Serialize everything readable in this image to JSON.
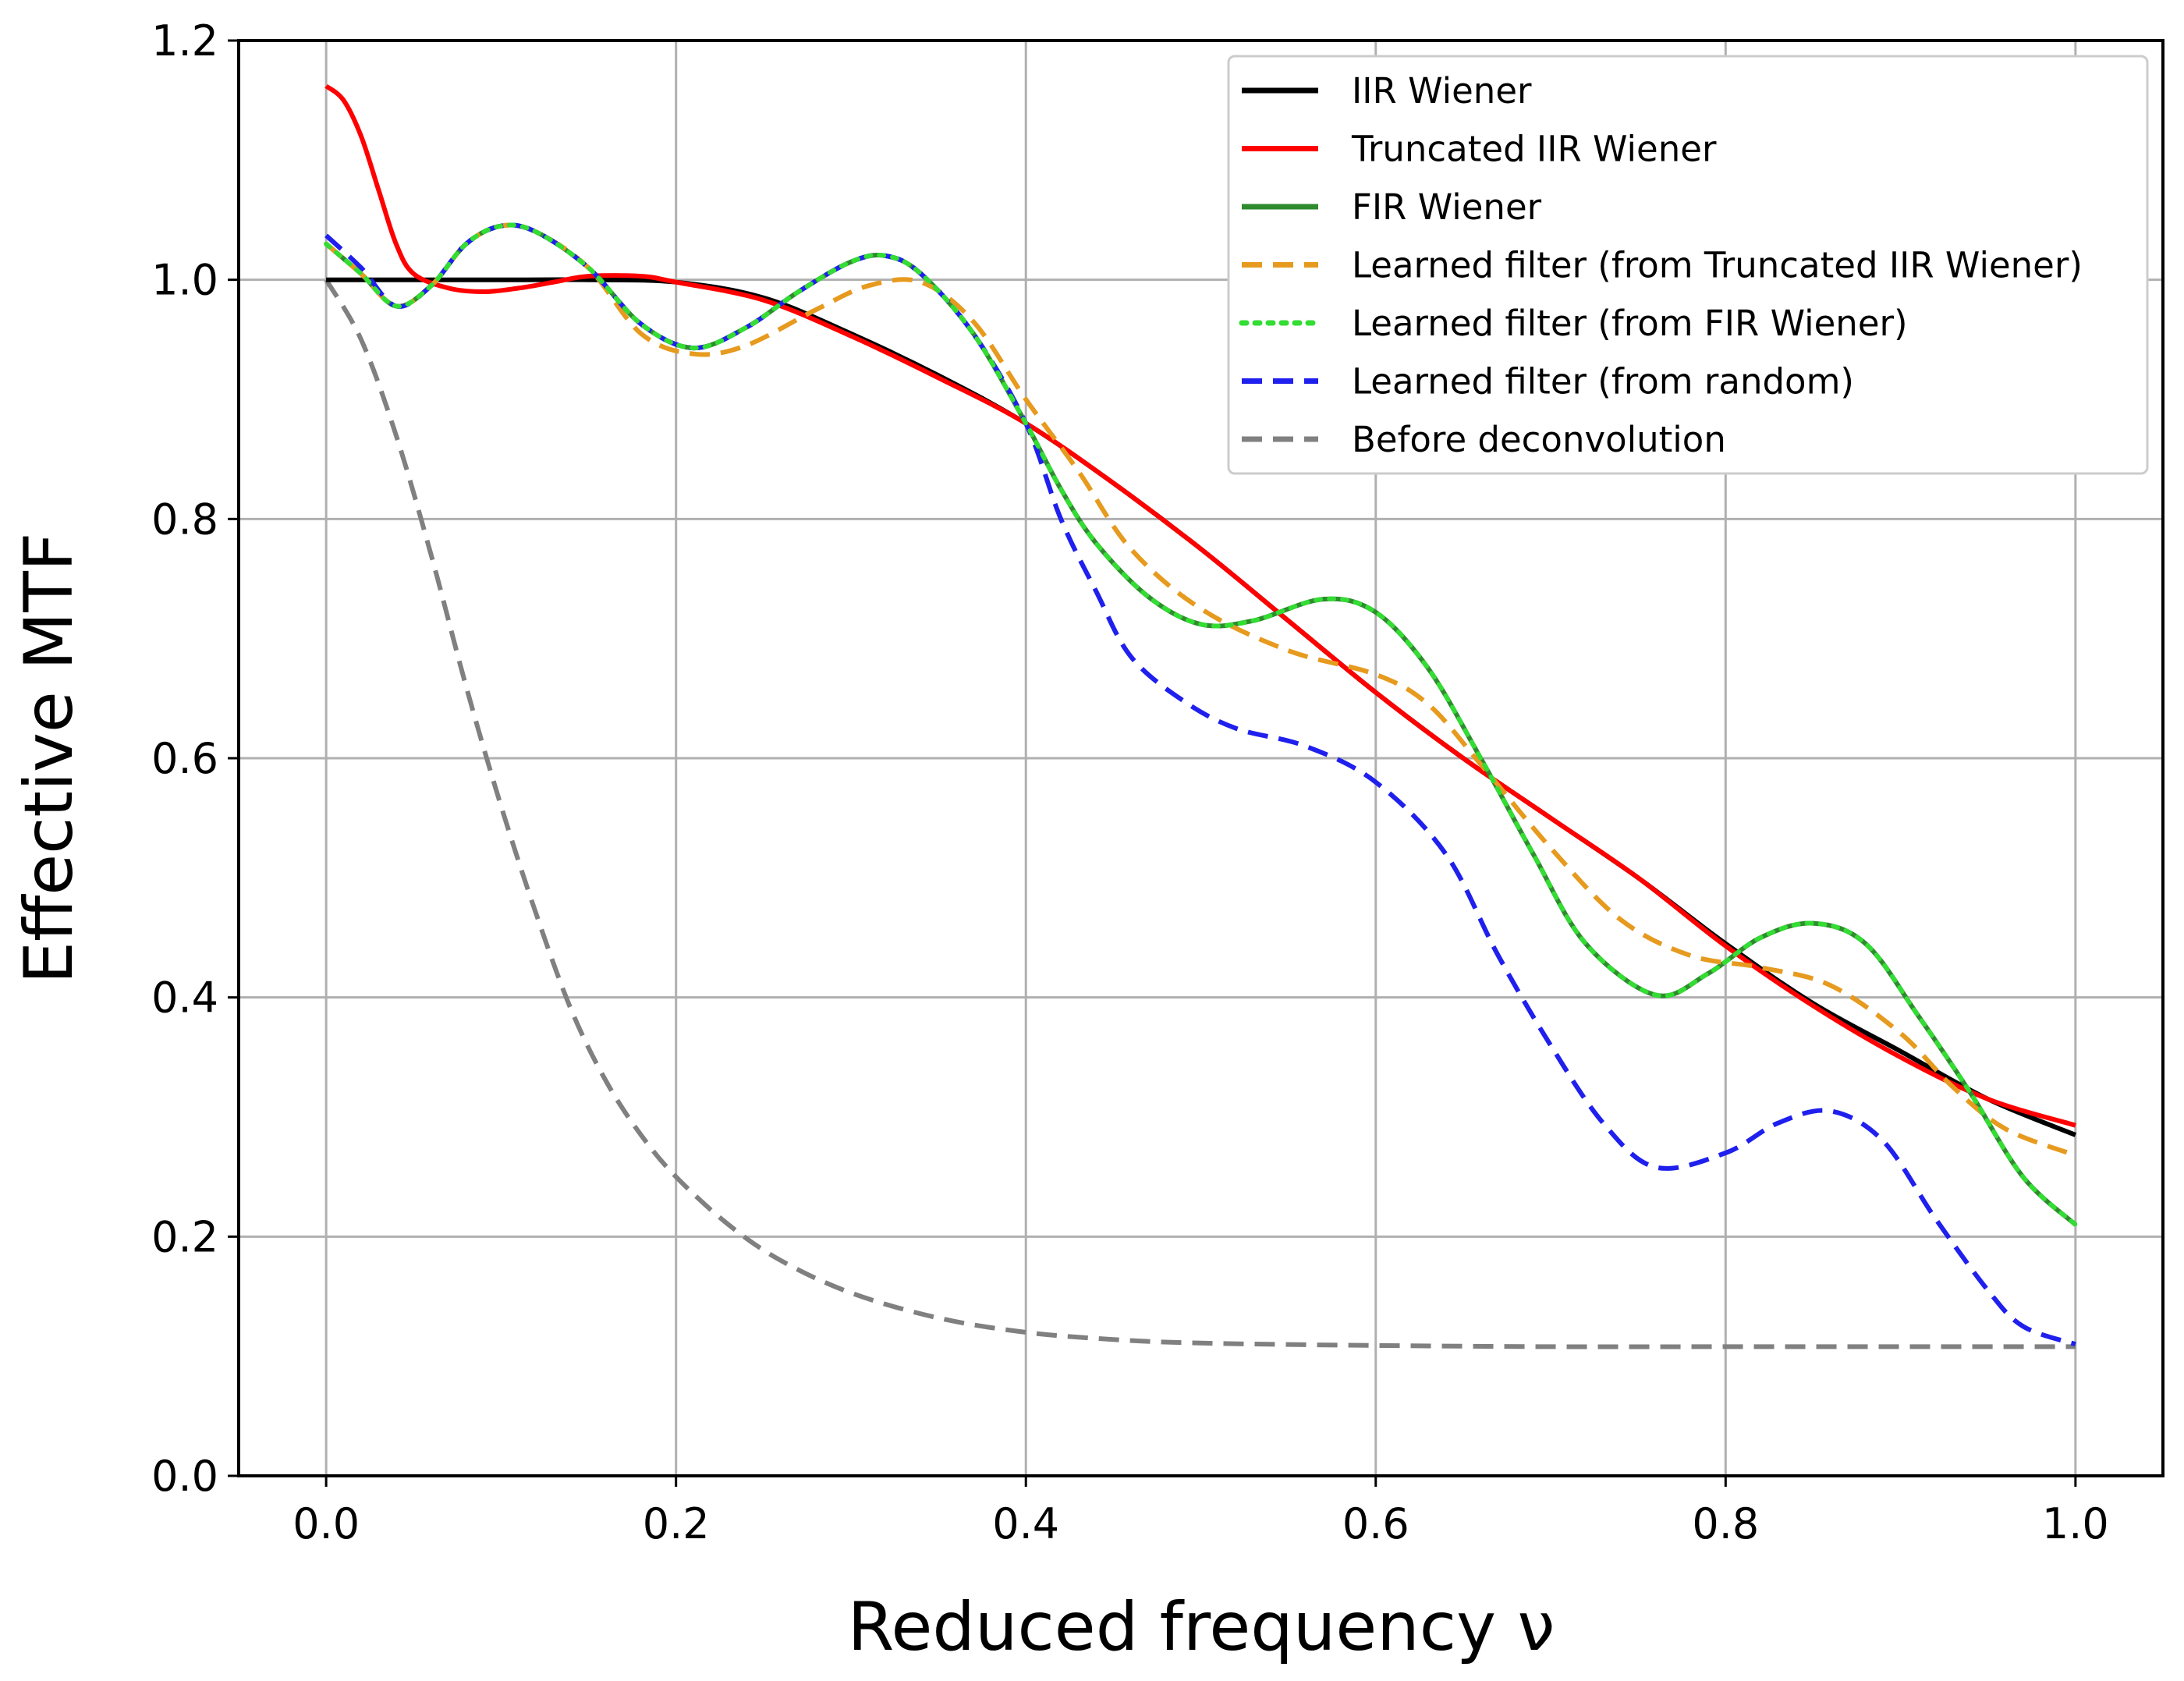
{
  "chart_data": {
    "type": "line",
    "title": "",
    "xlabel": "Reduced frequency ν",
    "ylabel": "Effective MTF",
    "xlim": [
      -0.05,
      1.05
    ],
    "ylim": [
      0.0,
      1.2
    ],
    "grid": true,
    "legend_position": "top-right",
    "x_ticks": [
      0.0,
      0.2,
      0.4,
      0.6,
      0.8,
      1.0
    ],
    "x_tick_labels": [
      "0.0",
      "0.2",
      "0.4",
      "0.6",
      "0.8",
      "1.0"
    ],
    "y_ticks": [
      0.0,
      0.2,
      0.4,
      0.6,
      0.8,
      1.0,
      1.2
    ],
    "y_tick_labels": [
      "0.0",
      "0.2",
      "0.4",
      "0.6",
      "0.8",
      "1.0",
      "1.2"
    ],
    "series": [
      {
        "name": "IIR Wiener",
        "color": "#000000",
        "style": "solid",
        "points": [
          [
            0.0,
            1.0
          ],
          [
            0.1,
            1.0
          ],
          [
            0.15,
            1.0
          ],
          [
            0.2,
            0.998
          ],
          [
            0.25,
            0.985
          ],
          [
            0.3,
            0.955
          ],
          [
            0.35,
            0.92
          ],
          [
            0.4,
            0.88
          ],
          [
            0.45,
            0.83
          ],
          [
            0.5,
            0.775
          ],
          [
            0.55,
            0.715
          ],
          [
            0.6,
            0.655
          ],
          [
            0.65,
            0.6
          ],
          [
            0.7,
            0.55
          ],
          [
            0.75,
            0.5
          ],
          [
            0.8,
            0.445
          ],
          [
            0.85,
            0.395
          ],
          [
            0.9,
            0.355
          ],
          [
            0.95,
            0.315
          ],
          [
            1.0,
            0.285
          ]
        ]
      },
      {
        "name": "Truncated IIR Wiener",
        "color": "#ff0000",
        "style": "solid",
        "points": [
          [
            0.0,
            1.162
          ],
          [
            0.01,
            1.15
          ],
          [
            0.02,
            1.12
          ],
          [
            0.03,
            1.075
          ],
          [
            0.04,
            1.03
          ],
          [
            0.05,
            1.005
          ],
          [
            0.07,
            0.993
          ],
          [
            0.09,
            0.99
          ],
          [
            0.11,
            0.993
          ],
          [
            0.13,
            0.998
          ],
          [
            0.15,
            1.003
          ],
          [
            0.18,
            1.003
          ],
          [
            0.2,
            0.998
          ],
          [
            0.25,
            0.983
          ],
          [
            0.3,
            0.953
          ],
          [
            0.35,
            0.918
          ],
          [
            0.4,
            0.88
          ],
          [
            0.45,
            0.83
          ],
          [
            0.5,
            0.775
          ],
          [
            0.55,
            0.715
          ],
          [
            0.6,
            0.655
          ],
          [
            0.65,
            0.6
          ],
          [
            0.7,
            0.55
          ],
          [
            0.75,
            0.5
          ],
          [
            0.8,
            0.443
          ],
          [
            0.85,
            0.393
          ],
          [
            0.9,
            0.35
          ],
          [
            0.95,
            0.315
          ],
          [
            1.0,
            0.293
          ]
        ]
      },
      {
        "name": "FIR Wiener",
        "color": "#2e8b2e",
        "style": "solid",
        "points": [
          [
            0.0,
            1.03
          ],
          [
            0.02,
            1.005
          ],
          [
            0.04,
            0.978
          ],
          [
            0.06,
            0.995
          ],
          [
            0.08,
            1.03
          ],
          [
            0.1,
            1.045
          ],
          [
            0.12,
            1.04
          ],
          [
            0.15,
            1.01
          ],
          [
            0.18,
            0.963
          ],
          [
            0.21,
            0.943
          ],
          [
            0.24,
            0.96
          ],
          [
            0.27,
            0.99
          ],
          [
            0.3,
            1.015
          ],
          [
            0.32,
            1.02
          ],
          [
            0.34,
            1.005
          ],
          [
            0.37,
            0.955
          ],
          [
            0.4,
            0.88
          ],
          [
            0.42,
            0.825
          ],
          [
            0.44,
            0.78
          ],
          [
            0.47,
            0.735
          ],
          [
            0.5,
            0.712
          ],
          [
            0.53,
            0.715
          ],
          [
            0.57,
            0.733
          ],
          [
            0.6,
            0.722
          ],
          [
            0.63,
            0.675
          ],
          [
            0.66,
            0.6
          ],
          [
            0.69,
            0.52
          ],
          [
            0.72,
            0.445
          ],
          [
            0.76,
            0.402
          ],
          [
            0.79,
            0.42
          ],
          [
            0.82,
            0.45
          ],
          [
            0.85,
            0.462
          ],
          [
            0.88,
            0.445
          ],
          [
            0.91,
            0.385
          ],
          [
            0.94,
            0.32
          ],
          [
            0.97,
            0.25
          ],
          [
            1.0,
            0.21
          ]
        ]
      },
      {
        "name": "Learned filter (from Truncated IIR Wiener)",
        "color": "#e69a1e",
        "style": "dashed",
        "points": [
          [
            0.0,
            1.03
          ],
          [
            0.02,
            1.005
          ],
          [
            0.04,
            0.978
          ],
          [
            0.06,
            0.995
          ],
          [
            0.08,
            1.03
          ],
          [
            0.1,
            1.045
          ],
          [
            0.12,
            1.04
          ],
          [
            0.15,
            1.01
          ],
          [
            0.18,
            0.955
          ],
          [
            0.21,
            0.938
          ],
          [
            0.24,
            0.945
          ],
          [
            0.28,
            0.975
          ],
          [
            0.31,
            0.995
          ],
          [
            0.34,
            0.998
          ],
          [
            0.37,
            0.965
          ],
          [
            0.4,
            0.9
          ],
          [
            0.43,
            0.84
          ],
          [
            0.46,
            0.775
          ],
          [
            0.5,
            0.725
          ],
          [
            0.55,
            0.69
          ],
          [
            0.6,
            0.67
          ],
          [
            0.63,
            0.645
          ],
          [
            0.66,
            0.595
          ],
          [
            0.7,
            0.525
          ],
          [
            0.74,
            0.465
          ],
          [
            0.78,
            0.435
          ],
          [
            0.82,
            0.425
          ],
          [
            0.86,
            0.41
          ],
          [
            0.9,
            0.37
          ],
          [
            0.93,
            0.325
          ],
          [
            0.96,
            0.29
          ],
          [
            1.0,
            0.268
          ]
        ]
      },
      {
        "name": "Learned filter (from FIR Wiener)",
        "color": "#33dd33",
        "style": "dotted",
        "points": [
          [
            0.0,
            1.03
          ],
          [
            0.02,
            1.005
          ],
          [
            0.04,
            0.978
          ],
          [
            0.06,
            0.995
          ],
          [
            0.08,
            1.03
          ],
          [
            0.1,
            1.045
          ],
          [
            0.12,
            1.04
          ],
          [
            0.15,
            1.01
          ],
          [
            0.18,
            0.963
          ],
          [
            0.21,
            0.943
          ],
          [
            0.24,
            0.96
          ],
          [
            0.27,
            0.99
          ],
          [
            0.3,
            1.015
          ],
          [
            0.32,
            1.02
          ],
          [
            0.34,
            1.005
          ],
          [
            0.37,
            0.955
          ],
          [
            0.4,
            0.88
          ],
          [
            0.42,
            0.825
          ],
          [
            0.44,
            0.78
          ],
          [
            0.47,
            0.735
          ],
          [
            0.5,
            0.712
          ],
          [
            0.53,
            0.715
          ],
          [
            0.57,
            0.733
          ],
          [
            0.6,
            0.722
          ],
          [
            0.63,
            0.675
          ],
          [
            0.66,
            0.6
          ],
          [
            0.69,
            0.52
          ],
          [
            0.72,
            0.445
          ],
          [
            0.76,
            0.402
          ],
          [
            0.79,
            0.42
          ],
          [
            0.82,
            0.45
          ],
          [
            0.85,
            0.462
          ],
          [
            0.88,
            0.445
          ],
          [
            0.91,
            0.385
          ],
          [
            0.94,
            0.32
          ],
          [
            0.97,
            0.25
          ],
          [
            1.0,
            0.21
          ]
        ]
      },
      {
        "name": "Learned filter (from random)",
        "color": "#1f1fee",
        "style": "dashed",
        "points": [
          [
            0.0,
            1.037
          ],
          [
            0.02,
            1.01
          ],
          [
            0.04,
            0.978
          ],
          [
            0.06,
            0.995
          ],
          [
            0.08,
            1.03
          ],
          [
            0.1,
            1.045
          ],
          [
            0.12,
            1.04
          ],
          [
            0.15,
            1.01
          ],
          [
            0.18,
            0.963
          ],
          [
            0.21,
            0.943
          ],
          [
            0.24,
            0.96
          ],
          [
            0.27,
            0.99
          ],
          [
            0.3,
            1.015
          ],
          [
            0.32,
            1.02
          ],
          [
            0.34,
            1.005
          ],
          [
            0.37,
            0.955
          ],
          [
            0.4,
            0.88
          ],
          [
            0.42,
            0.8
          ],
          [
            0.44,
            0.74
          ],
          [
            0.46,
            0.685
          ],
          [
            0.49,
            0.648
          ],
          [
            0.52,
            0.625
          ],
          [
            0.56,
            0.61
          ],
          [
            0.6,
            0.58
          ],
          [
            0.64,
            0.52
          ],
          [
            0.67,
            0.435
          ],
          [
            0.7,
            0.36
          ],
          [
            0.73,
            0.295
          ],
          [
            0.76,
            0.258
          ],
          [
            0.8,
            0.27
          ],
          [
            0.83,
            0.295
          ],
          [
            0.86,
            0.305
          ],
          [
            0.89,
            0.28
          ],
          [
            0.92,
            0.215
          ],
          [
            0.95,
            0.155
          ],
          [
            0.97,
            0.125
          ],
          [
            1.0,
            0.11
          ]
        ]
      },
      {
        "name": "Before deconvolution",
        "color": "#808080",
        "style": "dashed",
        "points": [
          [
            0.0,
            1.0
          ],
          [
            0.02,
            0.95
          ],
          [
            0.04,
            0.87
          ],
          [
            0.06,
            0.77
          ],
          [
            0.08,
            0.66
          ],
          [
            0.1,
            0.56
          ],
          [
            0.12,
            0.47
          ],
          [
            0.14,
            0.39
          ],
          [
            0.16,
            0.33
          ],
          [
            0.18,
            0.285
          ],
          [
            0.2,
            0.25
          ],
          [
            0.23,
            0.21
          ],
          [
            0.26,
            0.18
          ],
          [
            0.3,
            0.153
          ],
          [
            0.35,
            0.132
          ],
          [
            0.4,
            0.12
          ],
          [
            0.45,
            0.114
          ],
          [
            0.5,
            0.111
          ],
          [
            0.6,
            0.109
          ],
          [
            0.7,
            0.108
          ],
          [
            0.8,
            0.108
          ],
          [
            0.9,
            0.108
          ],
          [
            1.0,
            0.108
          ]
        ]
      }
    ]
  }
}
